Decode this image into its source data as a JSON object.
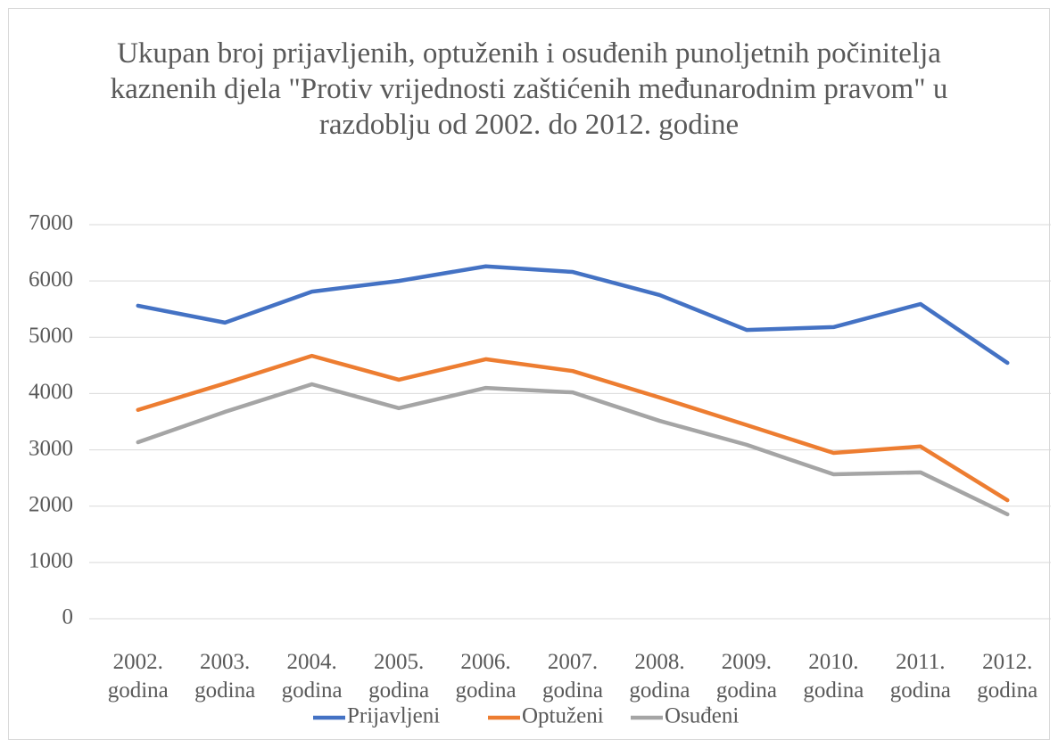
{
  "chart_data": {
    "type": "line",
    "title": "Ukupan broj prijavljenih, optuženih i osuđenih punoljetnih počinitelja kaznenih djela \"Protiv vrijednosti zaštićenih međunarodnim pravom\" u razdoblju od 2002. do 2012. godine",
    "categories": [
      "2002. godina",
      "2003. godina",
      "2004. godina",
      "2005. godina",
      "2006. godina",
      "2007. godina",
      "2008. godina",
      "2009. godina",
      "2010. godina",
      "2011. godina",
      "2012. godina"
    ],
    "series": [
      {
        "name": "Prijavljeni",
        "color": "#4472c4",
        "values": [
          5560,
          5260,
          5810,
          6000,
          6260,
          6160,
          5750,
          5130,
          5180,
          5590,
          4545
        ]
      },
      {
        "name": "Optuženi",
        "color": "#ed7d31",
        "values": [
          3710,
          4180,
          4670,
          4245,
          4610,
          4400,
          3930,
          3440,
          2945,
          3060,
          2105
        ]
      },
      {
        "name": "Osuđeni",
        "color": "#a5a5a5",
        "values": [
          3135,
          3675,
          4165,
          3740,
          4100,
          4020,
          3515,
          3090,
          2565,
          2600,
          1855
        ]
      }
    ],
    "ylim": [
      0,
      7000
    ],
    "yticks": [
      0,
      1000,
      2000,
      3000,
      4000,
      5000,
      6000,
      7000
    ],
    "grid": true,
    "legend": "bottom"
  }
}
